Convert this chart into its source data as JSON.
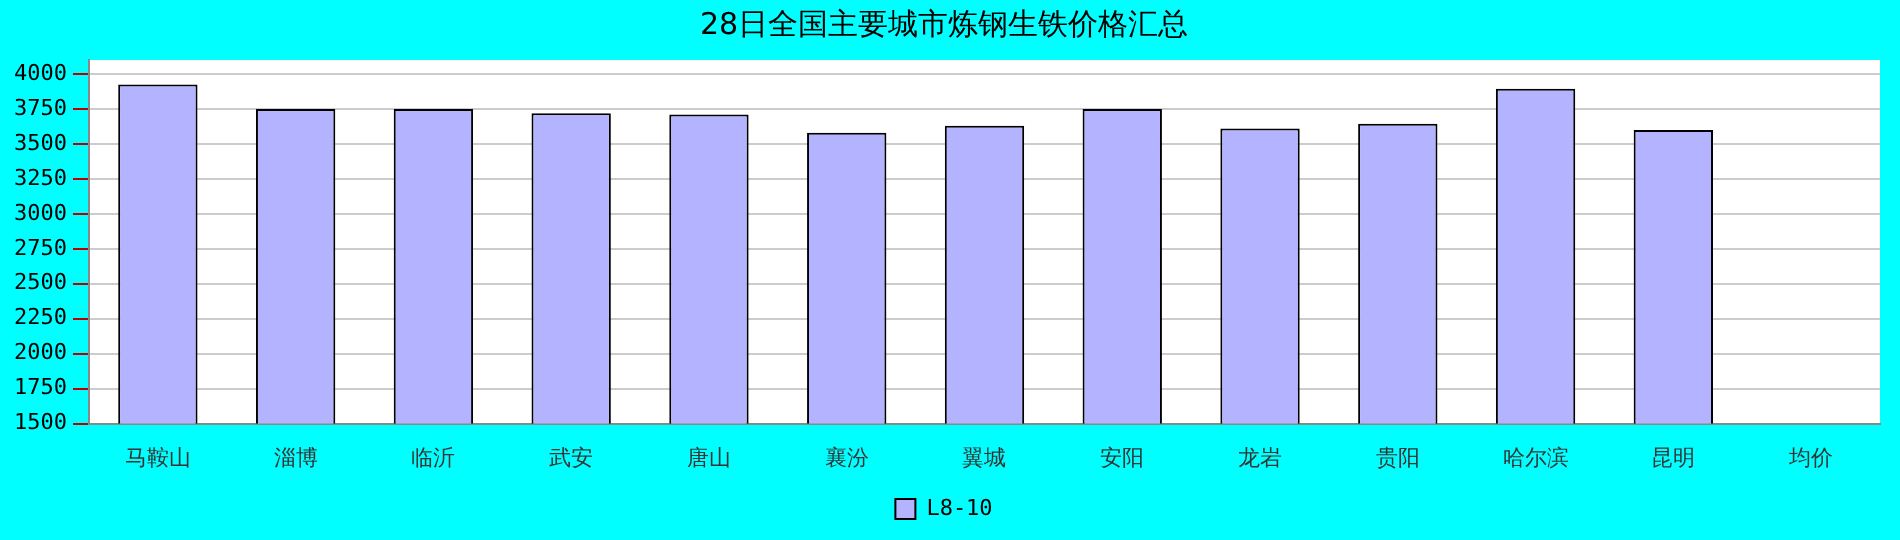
{
  "chart_data": {
    "type": "bar",
    "title": "28日全国主要城市炼钢生铁价格汇总",
    "categories": [
      "马鞍山",
      "淄博",
      "临沂",
      "武安",
      "唐山",
      "襄汾",
      "翼城",
      "安阳",
      "龙岩",
      "贵阳",
      "哈尔滨",
      "昆明",
      "均价"
    ],
    "series": [
      {
        "name": "L8-10",
        "color": "#b3b3ff",
        "values": [
          3925,
          3750,
          3750,
          3720,
          3710,
          3580,
          3630,
          3750,
          3610,
          3645,
          3895,
          3600,
          null
        ]
      }
    ],
    "ylim": [
      1500,
      4100
    ],
    "yticks": [
      1500,
      1750,
      2000,
      2250,
      2500,
      2750,
      3000,
      3250,
      3500,
      3750,
      4000
    ],
    "grid": "y",
    "legend": "bottom"
  }
}
